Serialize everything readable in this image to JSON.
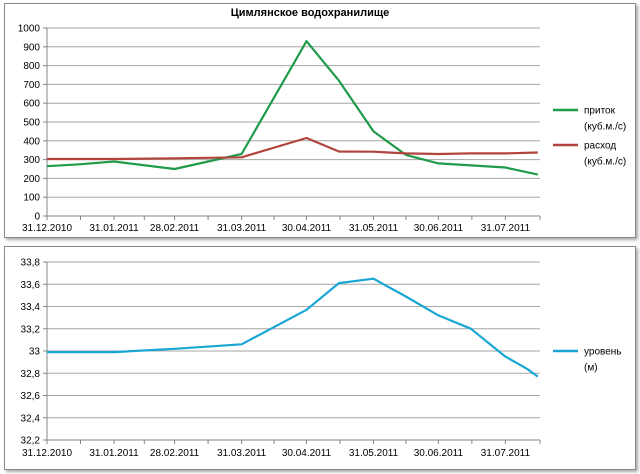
{
  "chart_data": [
    {
      "type": "line",
      "title": "Цимлянское водохранилище",
      "xlabel": "",
      "ylabel": "",
      "x_tick_labels": [
        "31.12.2010",
        "31.01.2011",
        "28.02.2011",
        "31.03.2011",
        "30.04.2011",
        "31.05.2011",
        "30.06.2011",
        "31.07.2011"
      ],
      "y_tick_labels": [
        "0",
        "100",
        "200",
        "300",
        "400",
        "500",
        "600",
        "700",
        "800",
        "900",
        "1000"
      ],
      "ylim": [
        0,
        1000
      ],
      "grid": true,
      "legend_position": "right",
      "series": [
        {
          "name": "приток",
          "legend_lines": [
            "приток",
            "(куб.м./с)"
          ],
          "color": "#1f9b4a",
          "points": [
            {
              "x": "2010-12-31",
              "y": 265
            },
            {
              "x": "2011-01-15",
              "y": 275
            },
            {
              "x": "2011-01-31",
              "y": 290
            },
            {
              "x": "2011-02-28",
              "y": 250
            },
            {
              "x": "2011-03-31",
              "y": 330
            },
            {
              "x": "2011-04-30",
              "y": 930
            },
            {
              "x": "2011-05-15",
              "y": 720
            },
            {
              "x": "2011-05-31",
              "y": 450
            },
            {
              "x": "2011-06-15",
              "y": 325
            },
            {
              "x": "2011-06-30",
              "y": 280
            },
            {
              "x": "2011-07-31",
              "y": 258
            },
            {
              "x": "2011-08-15",
              "y": 220
            }
          ]
        },
        {
          "name": "расход",
          "legend_lines": [
            "расход",
            "(куб.м./с)"
          ],
          "color": "#b2443e",
          "points": [
            {
              "x": "2010-12-31",
              "y": 303
            },
            {
              "x": "2011-01-31",
              "y": 303
            },
            {
              "x": "2011-02-28",
              "y": 307
            },
            {
              "x": "2011-03-31",
              "y": 312
            },
            {
              "x": "2011-04-30",
              "y": 415
            },
            {
              "x": "2011-05-15",
              "y": 343
            },
            {
              "x": "2011-05-31",
              "y": 342
            },
            {
              "x": "2011-06-15",
              "y": 333
            },
            {
              "x": "2011-06-30",
              "y": 330
            },
            {
              "x": "2011-07-15",
              "y": 333
            },
            {
              "x": "2011-07-31",
              "y": 333
            },
            {
              "x": "2011-08-15",
              "y": 338
            }
          ]
        }
      ]
    },
    {
      "type": "line",
      "title": "",
      "xlabel": "",
      "ylabel": "",
      "x_tick_labels": [
        "31.12.2010",
        "31.01.2011",
        "28.02.2011",
        "31.03.2011",
        "30.04.2011",
        "31.05.2011",
        "30.06.2011",
        "31.07.2011"
      ],
      "y_tick_labels": [
        "32,2",
        "32,4",
        "32,6",
        "32,8",
        "33",
        "33,2",
        "33,4",
        "33,6",
        "33,8"
      ],
      "ylim": [
        32.2,
        33.8
      ],
      "grid": true,
      "legend_position": "right",
      "series": [
        {
          "name": "уровень",
          "legend_lines": [
            "уровень",
            "(м)"
          ],
          "color": "#1aa6d3",
          "points": [
            {
              "x": "2010-12-31",
              "y": 32.99
            },
            {
              "x": "2011-01-31",
              "y": 32.99
            },
            {
              "x": "2011-02-28",
              "y": 33.02
            },
            {
              "x": "2011-03-31",
              "y": 33.06
            },
            {
              "x": "2011-04-30",
              "y": 33.37
            },
            {
              "x": "2011-05-15",
              "y": 33.61
            },
            {
              "x": "2011-05-31",
              "y": 33.65
            },
            {
              "x": "2011-06-15",
              "y": 33.49
            },
            {
              "x": "2011-06-30",
              "y": 33.32
            },
            {
              "x": "2011-07-15",
              "y": 33.2
            },
            {
              "x": "2011-07-31",
              "y": 32.95
            },
            {
              "x": "2011-08-10",
              "y": 32.84
            },
            {
              "x": "2011-08-15",
              "y": 32.77
            }
          ]
        }
      ]
    }
  ]
}
